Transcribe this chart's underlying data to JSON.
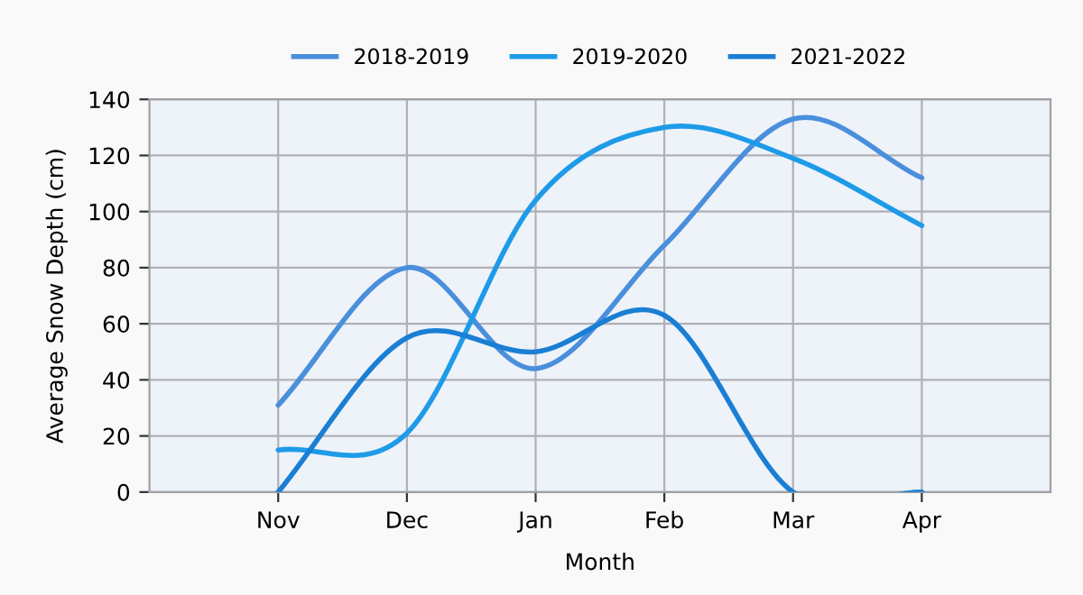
{
  "chart_data": {
    "type": "line",
    "xlabel": "Month",
    "ylabel": "Average Snow Depth (cm)",
    "categories": [
      "Nov",
      "Dec",
      "Jan",
      "Feb",
      "Mar",
      "Apr"
    ],
    "series": [
      {
        "name": "2018-2019",
        "color": "#4a8fdc",
        "values": [
          31,
          80,
          44,
          88,
          133,
          112
        ]
      },
      {
        "name": "2019-2020",
        "color": "#1e9be8",
        "values": [
          15,
          21,
          104,
          130,
          119,
          95
        ]
      },
      {
        "name": "2021-2022",
        "color": "#1a7fd4",
        "values": [
          0,
          55,
          50,
          63,
          0,
          0
        ]
      }
    ],
    "ylim": [
      0,
      140
    ],
    "yticks": [
      0,
      20,
      40,
      60,
      80,
      100,
      120,
      140
    ],
    "grid": true,
    "legend": "top",
    "marker": "none",
    "line_style": "solid"
  }
}
